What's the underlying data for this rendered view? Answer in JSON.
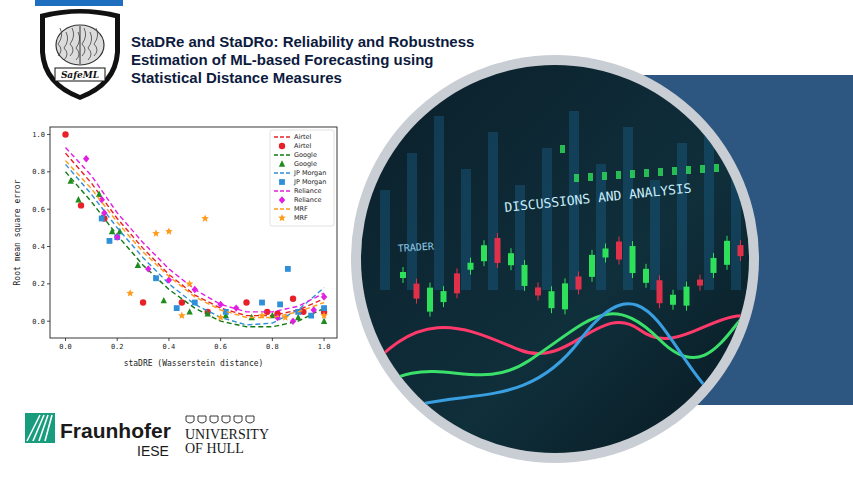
{
  "header": {
    "title_lines": [
      "StaDRe and StaDRo: Reliability and Robustness",
      "Estimation of ML-based Forecasting using",
      "Statistical Distance Measures"
    ],
    "logo_text": "SafeML"
  },
  "chart_data": {
    "type": "scatter",
    "x_label": "staDRE (Wasserstein distance)",
    "y_label": "Root mean square error",
    "xlim": [
      -0.06,
      1.05
    ],
    "ylim": [
      -0.09,
      1.04
    ],
    "xticks": [
      {
        "value": 0,
        "label": "0.0"
      },
      {
        "value": 0.2,
        "label": "0.2"
      },
      {
        "value": 0.4,
        "label": "0.4"
      },
      {
        "value": 0.6,
        "label": "0.6"
      },
      {
        "value": 0.8,
        "label": "0.8"
      },
      {
        "value": 1,
        "label": "1.0"
      }
    ],
    "yticks": [
      {
        "value": 0,
        "label": "0.0"
      },
      {
        "value": 0.2,
        "label": "0.2"
      },
      {
        "value": 0.4,
        "label": "0.4"
      },
      {
        "value": 0.6,
        "label": "0.6"
      },
      {
        "value": 0.8,
        "label": "0.8"
      },
      {
        "value": 1,
        "label": "1.0"
      }
    ],
    "legend": "upper right",
    "grid": false,
    "series": [
      {
        "name": "Airtel",
        "color": "#e8202a",
        "type": "line",
        "line_style": "dashed",
        "x": [
          0,
          0.1,
          0.2,
          0.3,
          0.4,
          0.5,
          0.6,
          0.7,
          0.8,
          0.9,
          1.0
        ],
        "values": [
          0.9,
          0.74,
          0.55,
          0.39,
          0.25,
          0.14,
          0.07,
          0.03,
          0.03,
          0.06,
          0.12
        ]
      },
      {
        "name": "Airtel",
        "color": "#e8202a",
        "type": "scatter",
        "marker": "circle",
        "x": [
          0.0,
          0.06,
          0.15,
          0.3,
          0.45,
          0.55,
          0.7,
          0.78,
          0.82,
          0.88,
          0.92,
          1.0
        ],
        "values": [
          1.0,
          0.62,
          0.55,
          0.1,
          0.1,
          0.05,
          0.1,
          0.05,
          0.04,
          0.12,
          0.05,
          0.05
        ]
      },
      {
        "name": "Google",
        "color": "#137a13",
        "type": "line",
        "line_style": "dashed",
        "x": [
          0,
          0.1,
          0.2,
          0.3,
          0.4,
          0.5,
          0.6,
          0.7,
          0.8,
          0.9,
          1.0
        ],
        "values": [
          0.8,
          0.64,
          0.46,
          0.3,
          0.17,
          0.07,
          0.0,
          -0.03,
          -0.03,
          0.0,
          0.07
        ]
      },
      {
        "name": "Google",
        "color": "#1e8c1e",
        "type": "scatter",
        "marker": "triangle",
        "x": [
          0.02,
          0.05,
          0.13,
          0.18,
          0.21,
          0.28,
          0.38,
          0.48,
          0.55,
          0.62,
          0.72,
          0.8,
          0.9,
          1.0
        ],
        "values": [
          0.75,
          0.65,
          0.68,
          0.48,
          0.48,
          0.3,
          0.11,
          0.05,
          0.04,
          0.03,
          0.02,
          0.03,
          0.02,
          0.0
        ]
      },
      {
        "name": "JP Morgan",
        "color": "#2f8fd8",
        "type": "line",
        "line_style": "dashed",
        "x": [
          0,
          0.1,
          0.2,
          0.3,
          0.4,
          0.5,
          0.6,
          0.7,
          0.8,
          0.9,
          1.0
        ],
        "values": [
          0.84,
          0.68,
          0.5,
          0.34,
          0.2,
          0.09,
          0.02,
          -0.02,
          -0.01,
          0.06,
          0.18
        ]
      },
      {
        "name": "JP Morgan",
        "color": "#2f8fd8",
        "type": "scatter",
        "marker": "square",
        "x": [
          0.14,
          0.17,
          0.2,
          0.35,
          0.43,
          0.5,
          0.62,
          0.76,
          0.83,
          0.86,
          0.9,
          0.95,
          1.0
        ],
        "values": [
          0.55,
          0.43,
          0.45,
          0.23,
          0.07,
          0.1,
          0.05,
          0.1,
          0.09,
          0.28,
          0.05,
          0.03,
          0.07
        ]
      },
      {
        "name": "Reliance",
        "color": "#e21ee2",
        "type": "line",
        "line_style": "dashed",
        "x": [
          0,
          0.1,
          0.2,
          0.3,
          0.4,
          0.5,
          0.6,
          0.7,
          0.8,
          0.9,
          1.0
        ],
        "values": [
          0.93,
          0.78,
          0.58,
          0.42,
          0.28,
          0.17,
          0.09,
          0.05,
          0.05,
          0.08,
          0.15
        ]
      },
      {
        "name": "Reliance",
        "color": "#e21ee2",
        "type": "scatter",
        "marker": "diamond",
        "x": [
          0.08,
          0.14,
          0.15,
          0.2,
          0.32,
          0.4,
          0.5,
          0.6,
          0.66,
          0.82,
          0.88,
          0.96,
          1.0
        ],
        "values": [
          0.87,
          0.65,
          0.58,
          0.45,
          0.28,
          0.22,
          0.17,
          0.09,
          0.07,
          0.02,
          0.0,
          0.06,
          0.13
        ]
      },
      {
        "name": "MRF",
        "color": "#ff9a1a",
        "type": "line",
        "line_style": "dashed",
        "x": [
          0,
          0.1,
          0.2,
          0.3,
          0.4,
          0.5,
          0.6,
          0.7,
          0.8,
          0.9,
          1.0
        ],
        "values": [
          0.86,
          0.71,
          0.53,
          0.37,
          0.24,
          0.13,
          0.06,
          0.02,
          0.02,
          0.05,
          0.1
        ]
      },
      {
        "name": "MRF",
        "color": "#ff9a1a",
        "type": "scatter",
        "marker": "star",
        "x": [
          0.25,
          0.35,
          0.4,
          0.45,
          0.48,
          0.54,
          0.6,
          0.76,
          0.85,
          1.0
        ],
        "values": [
          0.15,
          0.47,
          0.48,
          0.03,
          0.2,
          0.55,
          0.02,
          0.03,
          0.02,
          0.03
        ]
      }
    ]
  },
  "logos": {
    "fraunhofer": "Fraunhofer",
    "fraunhofer_unit": "IESE",
    "hull": [
      "UNIVERSITY",
      "OF HULL"
    ]
  },
  "image": {
    "texts": [
      "DISCUSSIONS AND ANALYSIS",
      "TRADER"
    ]
  }
}
